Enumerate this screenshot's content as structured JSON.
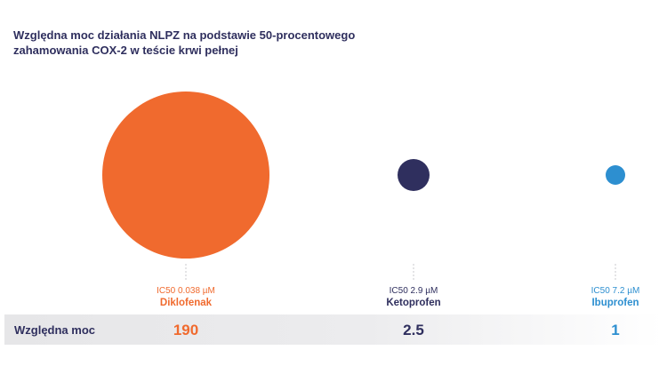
{
  "title": [
    "Względna moc działania NLPZ na podstawie 50-procentowego",
    "zahamowania COX-2 w teście krwi pełnej"
  ],
  "row_label": "Względna moc",
  "colors": {
    "title": "#2f2f5e",
    "row_bg_start": "#e6e6e8",
    "row_bg_end": "#ffffff",
    "connector": "#c8c8cc"
  },
  "chart_data": {
    "type": "bubble",
    "title": "Względna moc działania NLPZ na podstawie 50-procentowego zahamowania COX-2 w teście krwi pełnej",
    "categories": [
      "Diklofenak",
      "Ketoprofen",
      "Ibuprofen"
    ],
    "values": [
      190,
      2.5,
      1
    ],
    "value_labels": [
      "190",
      "2.5",
      "1"
    ],
    "ic50_labels": [
      "IC50 0.038 µM",
      "IC50 2.9 µM",
      "IC50 7.2 µM"
    ],
    "colors": [
      "#f06a2e",
      "#2f2f5e",
      "#2d8fd0"
    ],
    "size_encoding": "bubble area proportional to relative potency"
  }
}
